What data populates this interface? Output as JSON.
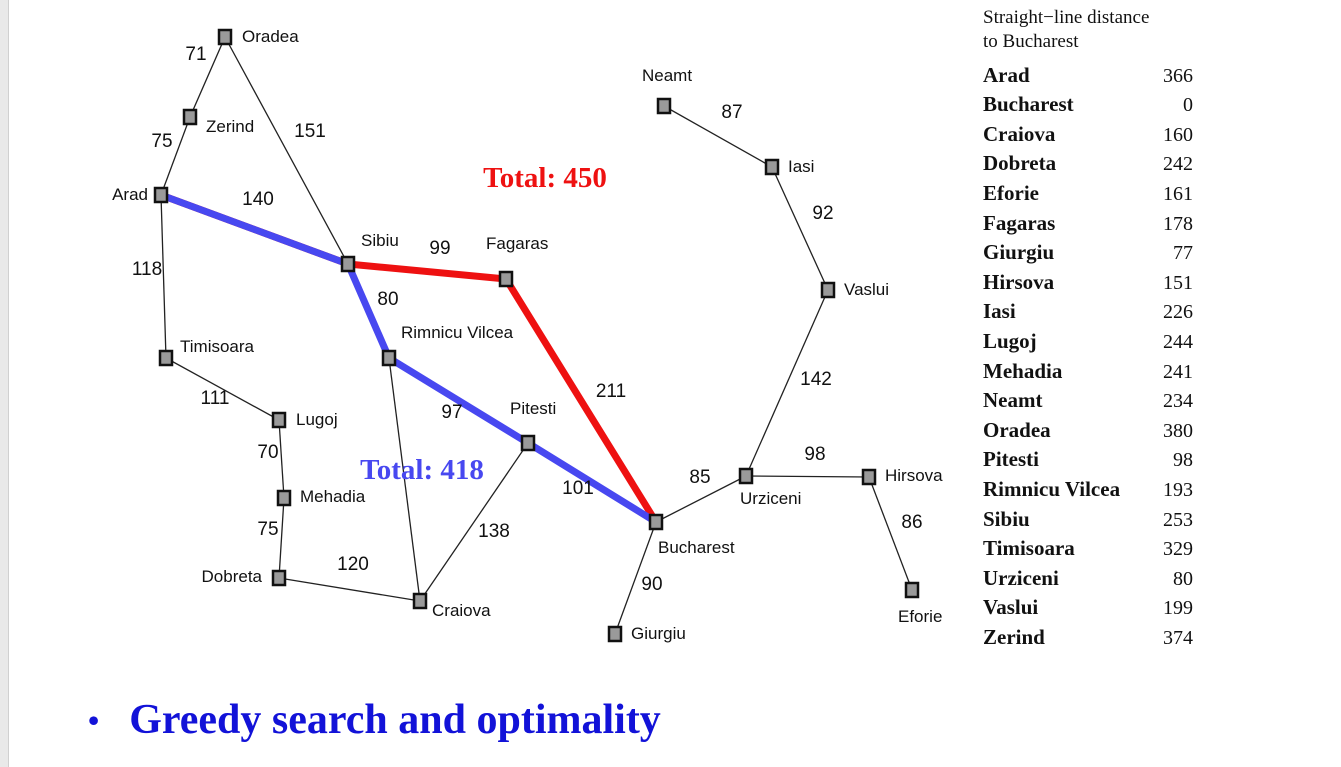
{
  "graph": {
    "cities": [
      {
        "name": "Oradea"
      },
      {
        "name": "Zerind"
      },
      {
        "name": "Arad"
      },
      {
        "name": "Timisoara"
      },
      {
        "name": "Lugoj"
      },
      {
        "name": "Mehadia"
      },
      {
        "name": "Dobreta"
      },
      {
        "name": "Sibiu"
      },
      {
        "name": "Fagaras"
      },
      {
        "name": "Rimnicu Vilcea"
      },
      {
        "name": "Pitesti"
      },
      {
        "name": "Craiova"
      },
      {
        "name": "Bucharest"
      },
      {
        "name": "Giurgiu"
      },
      {
        "name": "Urziceni"
      },
      {
        "name": "Hirsova"
      },
      {
        "name": "Eforie"
      },
      {
        "name": "Vaslui"
      },
      {
        "name": "Iasi"
      },
      {
        "name": "Neamt"
      }
    ],
    "roads": [
      {
        "from": "Oradea",
        "to": "Zerind",
        "distance": "71"
      },
      {
        "from": "Zerind",
        "to": "Arad",
        "distance": "75"
      },
      {
        "from": "Oradea",
        "to": "Sibiu",
        "distance": "151"
      },
      {
        "from": "Arad",
        "to": "Sibiu",
        "distance": "140"
      },
      {
        "from": "Arad",
        "to": "Timisoara",
        "distance": "118"
      },
      {
        "from": "Timisoara",
        "to": "Lugoj",
        "distance": "111"
      },
      {
        "from": "Lugoj",
        "to": "Mehadia",
        "distance": "70"
      },
      {
        "from": "Mehadia",
        "to": "Dobreta",
        "distance": "75"
      },
      {
        "from": "Dobreta",
        "to": "Craiova",
        "distance": "120"
      },
      {
        "from": "Sibiu",
        "to": "Fagaras",
        "distance": "99"
      },
      {
        "from": "Sibiu",
        "to": "Rimnicu Vilcea",
        "distance": "80"
      },
      {
        "from": "Rimnicu Vilcea",
        "to": "Pitesti",
        "distance": "97"
      },
      {
        "from": "Rimnicu Vilcea",
        "to": "Craiova",
        "distance": ""
      },
      {
        "from": "Craiova",
        "to": "Pitesti",
        "distance": "138"
      },
      {
        "from": "Pitesti",
        "to": "Bucharest",
        "distance": "101"
      },
      {
        "from": "Fagaras",
        "to": "Bucharest",
        "distance": "211"
      },
      {
        "from": "Bucharest",
        "to": "Giurgiu",
        "distance": "90"
      },
      {
        "from": "Bucharest",
        "to": "Urziceni",
        "distance": "85"
      },
      {
        "from": "Urziceni",
        "to": "Hirsova",
        "distance": "98"
      },
      {
        "from": "Hirsova",
        "to": "Eforie",
        "distance": "86"
      },
      {
        "from": "Urziceni",
        "to": "Vaslui",
        "distance": "142"
      },
      {
        "from": "Vaslui",
        "to": "Iasi",
        "distance": "92"
      },
      {
        "from": "Iasi",
        "to": "Neamt",
        "distance": "87"
      }
    ],
    "paths": [
      {
        "color": "#ee1111",
        "route": [
          "Arad",
          "Sibiu",
          "Fagaras",
          "Bucharest"
        ],
        "label": "Total: 450"
      },
      {
        "color": "#4848f0",
        "route": [
          "Arad",
          "Sibiu",
          "Rimnicu Vilcea",
          "Pitesti",
          "Bucharest"
        ],
        "label": "Total: 418"
      }
    ]
  },
  "sld_table": {
    "title_line1": "Straight−line distance",
    "title_line2": "to Bucharest",
    "rows": [
      {
        "city": "Arad",
        "value": "366"
      },
      {
        "city": "Bucharest",
        "value": "0"
      },
      {
        "city": "Craiova",
        "value": "160"
      },
      {
        "city": "Dobreta",
        "value": "242"
      },
      {
        "city": "Eforie",
        "value": "161"
      },
      {
        "city": "Fagaras",
        "value": "178"
      },
      {
        "city": "Giurgiu",
        "value": "77"
      },
      {
        "city": "Hirsova",
        "value": "151"
      },
      {
        "city": "Iasi",
        "value": "226"
      },
      {
        "city": "Lugoj",
        "value": "244"
      },
      {
        "city": "Mehadia",
        "value": "241"
      },
      {
        "city": "Neamt",
        "value": "234"
      },
      {
        "city": "Oradea",
        "value": "380"
      },
      {
        "city": "Pitesti",
        "value": "98"
      },
      {
        "city": "Rimnicu Vilcea",
        "value": "193"
      },
      {
        "city": "Sibiu",
        "value": "253"
      },
      {
        "city": "Timisoara",
        "value": "329"
      },
      {
        "city": "Urziceni",
        "value": "80"
      },
      {
        "city": "Vaslui",
        "value": "199"
      },
      {
        "city": "Zerind",
        "value": "374"
      }
    ]
  },
  "bullet": {
    "text": "Greedy search and optimality"
  }
}
